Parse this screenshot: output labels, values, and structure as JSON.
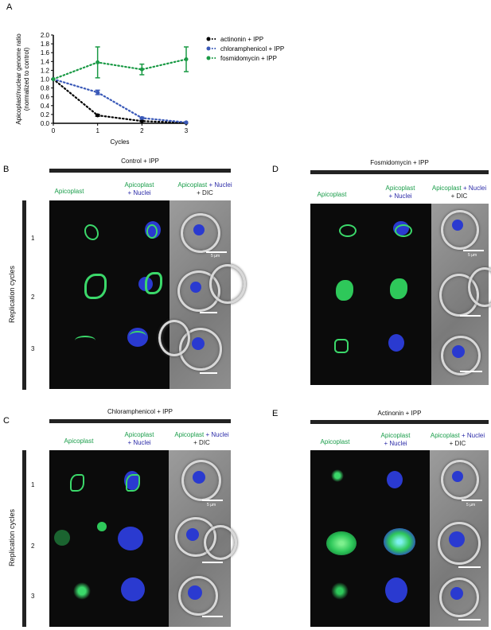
{
  "panels": {
    "A": "A",
    "B": "B",
    "C": "C",
    "D": "D",
    "E": "E"
  },
  "chart_data": {
    "type": "line",
    "xlabel": "Cycles",
    "ylabel": "Apicoplast/nuclear genome ratio\n(normalized to control)",
    "x": [
      0,
      1,
      2,
      3
    ],
    "xticks": [
      "0",
      "1",
      "2",
      "3"
    ],
    "yticks": [
      "0.0",
      "0.2",
      "0.4",
      "0.6",
      "0.8",
      "1.0",
      "1.2",
      "1.4",
      "1.6",
      "1.8",
      "2.0"
    ],
    "ylim": [
      0,
      2.0
    ],
    "xlim": [
      0,
      3
    ],
    "series": [
      {
        "name": "actinonin + IPP",
        "color": "#000000",
        "values": [
          1.0,
          0.18,
          0.05,
          0.01
        ],
        "err": [
          0,
          0.02,
          0.01,
          0.0
        ]
      },
      {
        "name": "chloramphenicol + IPP",
        "color": "#3a59b8",
        "values": [
          1.0,
          0.7,
          0.12,
          0.02
        ],
        "err": [
          0,
          0.05,
          0.02,
          0.0
        ]
      },
      {
        "name": "fosmidomycin + IPP",
        "color": "#1a9a45",
        "values": [
          1.0,
          1.38,
          1.22,
          1.45
        ],
        "err": [
          0,
          0.35,
          0.12,
          0.28
        ]
      }
    ]
  },
  "labels": {
    "apicoplast": "Apicoplast",
    "plus_nuclei_a": "Apicoplast",
    "plus_nuclei_b": "+ Nuclei",
    "dic_a_green": "Apicoplast",
    "dic_a_blue": " + Nuclei",
    "dic_b": "+ DIC",
    "replication": "Replication cycles",
    "scalebar": "5 µm",
    "rows": [
      "1",
      "2",
      "3"
    ]
  },
  "titles": {
    "B": "Control + IPP",
    "C": "Chloramphenicol + IPP",
    "D": "Fosmidomycin + IPP",
    "E": "Actinonin + IPP"
  },
  "colors": {
    "green": "#1a9d4a",
    "blue": "#2b2ba8"
  }
}
